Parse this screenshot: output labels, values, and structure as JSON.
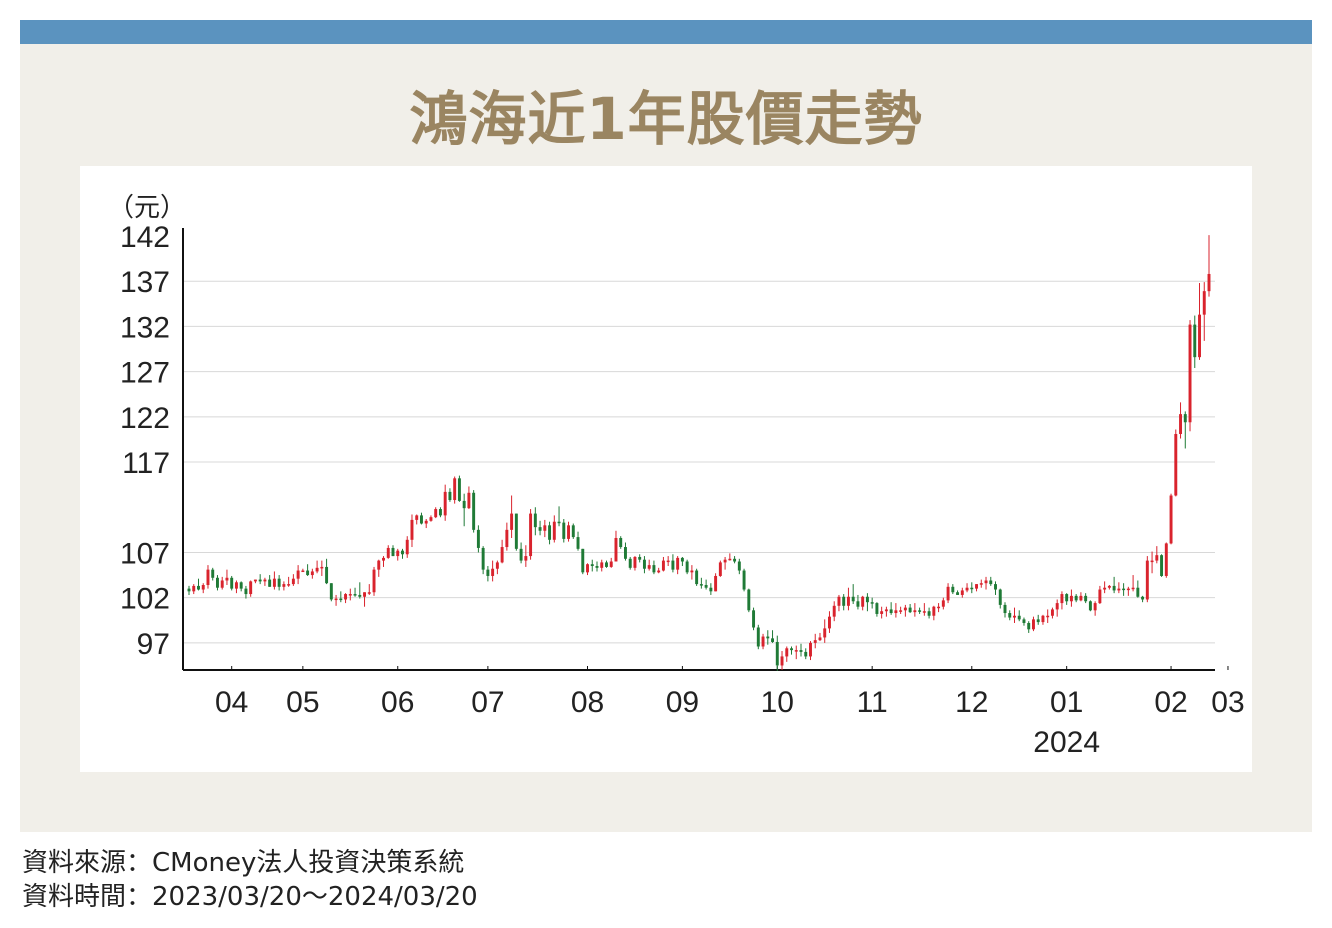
{
  "title": "鴻海近1年股價走勢",
  "colors": {
    "bar": "#5b93bf",
    "panel": "#f1efe9",
    "title": "#9a8561",
    "up": "#d9232d",
    "down": "#1f7a36",
    "grid": "#d8d8d8"
  },
  "footer": {
    "source": "資料來源：CMoney法人投資決策系統",
    "period": "資料時間：2023/03/20～2024/03/20"
  },
  "chart_data": {
    "type": "candlestick",
    "ylabel": "（元）",
    "ylim": [
      94,
      142
    ],
    "yticks": [
      97,
      102,
      107,
      117,
      122,
      127,
      132,
      137,
      142
    ],
    "ytick_labels": [
      "97",
      "102",
      "107",
      "117",
      "122",
      "127",
      "132",
      "137",
      "142"
    ],
    "xticks": [
      "04",
      "05",
      "06",
      "07",
      "08",
      "09",
      "10",
      "11",
      "12",
      "01",
      "02",
      "03"
    ],
    "xtick_year": "2024",
    "grid": true,
    "legend": "none",
    "approx_monthly_close": [
      {
        "month": "2023/03",
        "close": 103
      },
      {
        "month": "2023/04",
        "close": 103.5
      },
      {
        "month": "2023/05",
        "close": 104.5
      },
      {
        "month": "2023/06",
        "close": 107.5
      },
      {
        "month": "2023/07",
        "close": 106
      },
      {
        "month": "2023/08",
        "close": 109
      },
      {
        "month": "2023/09",
        "close": 105
      },
      {
        "month": "2023/10",
        "close": 104
      },
      {
        "month": "2023/11",
        "close": 98
      },
      {
        "month": "2023/12",
        "close": 101.5
      },
      {
        "month": "2024/01",
        "close": 100
      },
      {
        "month": "2024/02",
        "close": 102.5
      },
      {
        "month": "2024/03",
        "close": 138
      }
    ],
    "candles": [
      [
        103.0,
        103.3,
        102.3,
        102.7
      ],
      [
        102.7,
        103.5,
        102.4,
        103.3
      ],
      [
        103.3,
        104.1,
        102.8,
        102.9
      ],
      [
        102.9,
        103.6,
        102.5,
        103.4
      ],
      [
        103.4,
        105.6,
        103.0,
        105.1
      ],
      [
        105.1,
        105.3,
        103.9,
        104.2
      ],
      [
        104.2,
        104.5,
        102.8,
        103.1
      ],
      [
        103.1,
        104.3,
        102.9,
        103.9
      ],
      [
        103.9,
        105.1,
        103.4,
        104.2
      ],
      [
        104.2,
        104.4,
        102.8,
        103.0
      ],
      [
        103.0,
        103.9,
        102.5,
        103.7
      ],
      [
        103.7,
        103.8,
        102.7,
        103.0
      ],
      [
        103.0,
        103.3,
        101.9,
        102.4
      ],
      [
        102.4,
        103.9,
        102.1,
        103.8
      ],
      [
        103.8,
        104.0,
        103.6,
        104.0
      ],
      [
        104.0,
        104.6,
        103.5,
        103.8
      ],
      [
        103.8,
        104.2,
        103.3,
        104.0
      ],
      [
        104.0,
        104.5,
        103.2,
        103.2
      ],
      [
        103.2,
        104.9,
        102.9,
        104.1
      ],
      [
        104.1,
        104.5,
        102.8,
        103.2
      ],
      [
        103.2,
        103.8,
        102.8,
        103.5
      ],
      [
        103.5,
        104.3,
        103.2,
        103.5
      ],
      [
        103.5,
        104.6,
        103.3,
        104.1
      ],
      [
        104.1,
        105.6,
        103.5,
        105.0
      ],
      [
        105.0,
        105.2,
        104.9,
        105.0
      ],
      [
        105.0,
        105.7,
        104.4,
        104.5
      ],
      [
        104.5,
        105.2,
        104.1,
        104.9
      ],
      [
        104.9,
        106.1,
        104.7,
        105.3
      ],
      [
        105.3,
        106.1,
        104.4,
        105.4
      ],
      [
        105.4,
        106.3,
        103.5,
        103.6
      ],
      [
        103.6,
        103.6,
        101.6,
        101.8
      ],
      [
        101.8,
        102.3,
        101.1,
        101.9
      ],
      [
        101.9,
        102.7,
        101.5,
        101.8
      ],
      [
        101.8,
        102.5,
        101.4,
        102.4
      ],
      [
        102.4,
        103.0,
        101.7,
        102.4
      ],
      [
        102.4,
        103.1,
        102.1,
        102.3
      ],
      [
        102.3,
        103.7,
        101.9,
        102.1
      ],
      [
        102.1,
        102.6,
        101.0,
        102.6
      ],
      [
        102.6,
        103.5,
        102.3,
        102.6
      ],
      [
        102.6,
        105.4,
        102.2,
        105.1
      ],
      [
        105.1,
        106.2,
        104.3,
        106.1
      ],
      [
        106.1,
        106.6,
        105.4,
        106.4
      ],
      [
        106.4,
        107.8,
        106.3,
        107.5
      ],
      [
        107.5,
        107.8,
        106.6,
        106.6
      ],
      [
        106.6,
        107.4,
        106.1,
        107.2
      ],
      [
        107.2,
        107.4,
        106.3,
        106.8
      ],
      [
        106.8,
        108.8,
        106.4,
        108.4
      ],
      [
        108.4,
        111.2,
        107.6,
        110.6
      ],
      [
        110.6,
        111.2,
        110.1,
        111.1
      ],
      [
        111.1,
        111.4,
        110.1,
        110.2
      ],
      [
        110.2,
        110.7,
        109.7,
        110.5
      ],
      [
        110.5,
        111.1,
        110.4,
        110.9
      ],
      [
        110.9,
        112.0,
        110.8,
        111.8
      ],
      [
        111.8,
        112.0,
        110.9,
        111.1
      ],
      [
        111.1,
        114.5,
        110.5,
        113.7
      ],
      [
        113.7,
        114.1,
        112.6,
        112.8
      ],
      [
        112.8,
        115.4,
        112.4,
        115.2
      ],
      [
        115.2,
        115.5,
        112.6,
        112.7
      ],
      [
        112.7,
        113.5,
        109.9,
        111.9
      ],
      [
        111.9,
        114.3,
        111.8,
        113.6
      ],
      [
        113.6,
        113.9,
        109.2,
        109.5
      ],
      [
        109.5,
        110.0,
        107.0,
        107.5
      ],
      [
        107.5,
        107.7,
        104.6,
        105.1
      ],
      [
        105.1,
        105.5,
        103.8,
        104.4
      ],
      [
        104.4,
        106.1,
        103.8,
        105.2
      ],
      [
        105.2,
        106.1,
        104.6,
        105.9
      ],
      [
        105.9,
        108.4,
        105.8,
        107.6
      ],
      [
        107.6,
        110.3,
        107.2,
        109.5
      ],
      [
        109.5,
        113.3,
        108.6,
        111.3
      ],
      [
        111.3,
        111.3,
        107.2,
        107.4
      ],
      [
        107.4,
        108.1,
        105.8,
        106.1
      ],
      [
        106.1,
        107.8,
        105.4,
        106.6
      ],
      [
        106.6,
        111.8,
        106.2,
        111.3
      ],
      [
        111.3,
        112.0,
        108.9,
        109.8
      ],
      [
        109.8,
        110.5,
        108.9,
        109.4
      ],
      [
        109.4,
        110.6,
        108.7,
        110.0
      ],
      [
        110.0,
        110.4,
        107.9,
        108.4
      ],
      [
        108.4,
        111.1,
        108.1,
        110.4
      ],
      [
        110.4,
        112.1,
        109.9,
        110.3
      ],
      [
        110.3,
        110.7,
        108.1,
        108.5
      ],
      [
        108.5,
        110.4,
        108.2,
        110.0
      ],
      [
        110.0,
        110.2,
        108.5,
        108.7
      ],
      [
        108.7,
        109.3,
        107.2,
        107.4
      ],
      [
        107.4,
        107.4,
        104.6,
        104.8
      ],
      [
        104.8,
        105.8,
        104.5,
        105.7
      ],
      [
        105.7,
        106.2,
        104.9,
        105.5
      ],
      [
        105.5,
        106.0,
        104.9,
        105.3
      ],
      [
        105.3,
        106.2,
        104.9,
        105.9
      ],
      [
        105.9,
        106.1,
        105.3,
        105.4
      ],
      [
        105.4,
        106.4,
        105.3,
        106.0
      ],
      [
        106.0,
        109.4,
        106.0,
        108.6
      ],
      [
        108.6,
        108.8,
        107.4,
        107.6
      ],
      [
        107.6,
        108.1,
        106.1,
        106.3
      ],
      [
        106.3,
        106.5,
        105.1,
        105.3
      ],
      [
        105.3,
        106.6,
        105.0,
        106.5
      ],
      [
        106.5,
        106.8,
        105.9,
        106.2
      ],
      [
        106.2,
        106.6,
        104.7,
        105.2
      ],
      [
        105.2,
        106.2,
        105.0,
        105.6
      ],
      [
        105.6,
        106.1,
        104.6,
        104.8
      ],
      [
        104.8,
        105.3,
        104.7,
        105.0
      ],
      [
        105.0,
        106.5,
        104.9,
        106.1
      ],
      [
        106.1,
        106.6,
        105.5,
        106.1
      ],
      [
        106.1,
        106.8,
        104.8,
        105.1
      ],
      [
        105.1,
        106.6,
        104.6,
        106.4
      ],
      [
        106.4,
        106.5,
        105.5,
        106.0
      ],
      [
        106.0,
        106.2,
        104.6,
        104.8
      ],
      [
        104.8,
        105.6,
        104.0,
        105.0
      ],
      [
        105.0,
        105.2,
        103.3,
        103.5
      ],
      [
        103.5,
        104.2,
        103.0,
        103.4
      ],
      [
        103.4,
        104.0,
        102.9,
        103.1
      ],
      [
        103.1,
        103.6,
        102.3,
        102.7
      ],
      [
        102.7,
        104.7,
        102.7,
        104.4
      ],
      [
        104.4,
        106.1,
        104.3,
        105.9
      ],
      [
        105.9,
        106.5,
        105.1,
        106.2
      ],
      [
        106.2,
        106.9,
        106.1,
        106.3
      ],
      [
        106.3,
        106.6,
        105.8,
        106.0
      ],
      [
        106.0,
        106.3,
        104.6,
        105.0
      ],
      [
        105.0,
        105.2,
        102.7,
        102.9
      ],
      [
        102.9,
        103.0,
        100.4,
        100.6
      ],
      [
        100.6,
        100.9,
        98.4,
        98.7
      ],
      [
        98.7,
        99.0,
        96.3,
        96.6
      ],
      [
        96.6,
        98.0,
        96.3,
        97.7
      ],
      [
        97.7,
        98.4,
        96.8,
        97.5
      ],
      [
        97.5,
        98.4,
        97.0,
        97.1
      ],
      [
        97.1,
        97.8,
        93.9,
        94.5
      ],
      [
        94.5,
        96.1,
        94.0,
        95.5
      ],
      [
        95.5,
        96.6,
        94.9,
        96.4
      ],
      [
        96.4,
        96.6,
        95.7,
        96.2
      ],
      [
        96.2,
        96.7,
        95.2,
        96.2
      ],
      [
        96.2,
        96.9,
        95.5,
        96.0
      ],
      [
        96.0,
        96.4,
        95.2,
        95.5
      ],
      [
        95.5,
        97.2,
        95.1,
        97.0
      ],
      [
        97.0,
        98.0,
        96.4,
        97.3
      ],
      [
        97.3,
        98.1,
        97.2,
        97.6
      ],
      [
        97.6,
        99.6,
        97.0,
        98.6
      ],
      [
        98.6,
        100.5,
        98.1,
        99.9
      ],
      [
        99.9,
        101.6,
        99.4,
        101.1
      ],
      [
        101.1,
        102.3,
        100.5,
        102.1
      ],
      [
        102.1,
        102.4,
        100.6,
        101.1
      ],
      [
        101.1,
        103.1,
        100.6,
        102.1
      ],
      [
        102.1,
        103.5,
        101.3,
        101.6
      ],
      [
        101.6,
        102.3,
        100.7,
        101.0
      ],
      [
        101.0,
        102.2,
        100.6,
        102.1
      ],
      [
        102.1,
        102.5,
        100.5,
        101.5
      ],
      [
        101.5,
        102.0,
        100.8,
        101.4
      ],
      [
        101.4,
        101.5,
        99.9,
        100.2
      ],
      [
        100.2,
        101.0,
        99.7,
        100.5
      ],
      [
        100.5,
        101.0,
        99.9,
        100.7
      ],
      [
        100.7,
        101.5,
        100.1,
        100.3
      ],
      [
        100.3,
        101.4,
        99.8,
        100.6
      ],
      [
        100.6,
        101.0,
        100.2,
        100.6
      ],
      [
        100.6,
        101.2,
        99.9,
        100.9
      ],
      [
        100.9,
        101.3,
        100.3,
        100.4
      ],
      [
        100.4,
        101.4,
        99.9,
        100.6
      ],
      [
        100.6,
        100.9,
        100.2,
        100.5
      ],
      [
        100.5,
        101.4,
        100.0,
        100.5
      ],
      [
        100.5,
        100.9,
        99.7,
        100.0
      ],
      [
        100.0,
        101.1,
        99.5,
        101.0
      ],
      [
        101.0,
        101.4,
        100.4,
        101.0
      ],
      [
        101.0,
        102.0,
        100.7,
        101.7
      ],
      [
        101.7,
        103.6,
        101.4,
        103.2
      ],
      [
        103.2,
        103.5,
        102.4,
        102.6
      ],
      [
        102.6,
        102.8,
        102.3,
        102.3
      ],
      [
        102.3,
        103.1,
        102.0,
        102.8
      ],
      [
        102.8,
        103.6,
        102.6,
        103.1
      ],
      [
        103.1,
        103.7,
        102.5,
        103.0
      ],
      [
        103.0,
        103.5,
        102.7,
        103.5
      ],
      [
        103.5,
        104.0,
        103.1,
        103.6
      ],
      [
        103.6,
        104.3,
        102.9,
        103.9
      ],
      [
        103.9,
        104.3,
        103.3,
        103.5
      ],
      [
        103.5,
        103.8,
        102.3,
        102.9
      ],
      [
        102.9,
        103.0,
        100.8,
        101.2
      ],
      [
        101.2,
        101.5,
        99.8,
        100.3
      ],
      [
        100.3,
        100.6,
        99.5,
        99.8
      ],
      [
        99.8,
        100.9,
        99.2,
        100.0
      ],
      [
        100.0,
        100.6,
        99.4,
        99.6
      ],
      [
        99.6,
        99.8,
        98.9,
        99.2
      ],
      [
        99.2,
        99.4,
        98.1,
        98.5
      ],
      [
        98.5,
        99.9,
        98.3,
        99.6
      ],
      [
        99.6,
        100.1,
        99.0,
        99.3
      ],
      [
        99.3,
        100.1,
        99.0,
        100.0
      ],
      [
        100.0,
        100.7,
        99.2,
        100.0
      ],
      [
        100.0,
        100.9,
        99.7,
        100.7
      ],
      [
        100.7,
        101.8,
        99.9,
        101.4
      ],
      [
        101.4,
        102.7,
        100.7,
        102.4
      ],
      [
        102.4,
        102.5,
        101.2,
        101.6
      ],
      [
        101.6,
        102.9,
        101.0,
        102.2
      ],
      [
        102.2,
        102.4,
        101.5,
        101.7
      ],
      [
        101.7,
        102.6,
        101.6,
        102.2
      ],
      [
        102.2,
        102.5,
        101.4,
        101.6
      ],
      [
        101.6,
        101.7,
        100.5,
        100.6
      ],
      [
        100.6,
        101.6,
        100.0,
        101.4
      ],
      [
        101.4,
        103.3,
        101.3,
        102.9
      ],
      [
        102.9,
        103.8,
        102.5,
        103.1
      ],
      [
        103.1,
        103.4,
        102.9,
        103.3
      ],
      [
        103.3,
        104.3,
        102.5,
        102.8
      ],
      [
        102.8,
        103.7,
        102.5,
        103.0
      ],
      [
        103.0,
        103.6,
        102.2,
        102.9
      ],
      [
        102.9,
        103.2,
        102.2,
        103.0
      ],
      [
        103.0,
        104.5,
        102.7,
        103.1
      ],
      [
        103.1,
        103.9,
        102.0,
        102.1
      ],
      [
        102.1,
        102.2,
        101.5,
        101.8
      ],
      [
        101.8,
        106.6,
        101.5,
        106.1
      ],
      [
        106.1,
        107.1,
        104.7,
        106.1
      ],
      [
        106.1,
        107.7,
        105.8,
        106.7
      ],
      [
        106.7,
        106.8,
        104.3,
        104.4
      ],
      [
        104.4,
        108.1,
        104.2,
        108.0
      ],
      [
        108.0,
        113.5,
        107.9,
        113.3
      ],
      [
        113.3,
        120.6,
        113.2,
        120.1
      ],
      [
        120.1,
        123.6,
        119.6,
        122.3
      ],
      [
        122.3,
        122.6,
        118.5,
        121.4
      ],
      [
        121.4,
        132.7,
        120.4,
        132.2
      ],
      [
        132.2,
        133.2,
        127.4,
        128.6
      ],
      [
        128.6,
        136.8,
        128.3,
        133.3
      ],
      [
        133.3,
        136.9,
        130.4,
        135.9
      ],
      [
        135.9,
        142.1,
        135.3,
        137.8
      ]
    ]
  }
}
